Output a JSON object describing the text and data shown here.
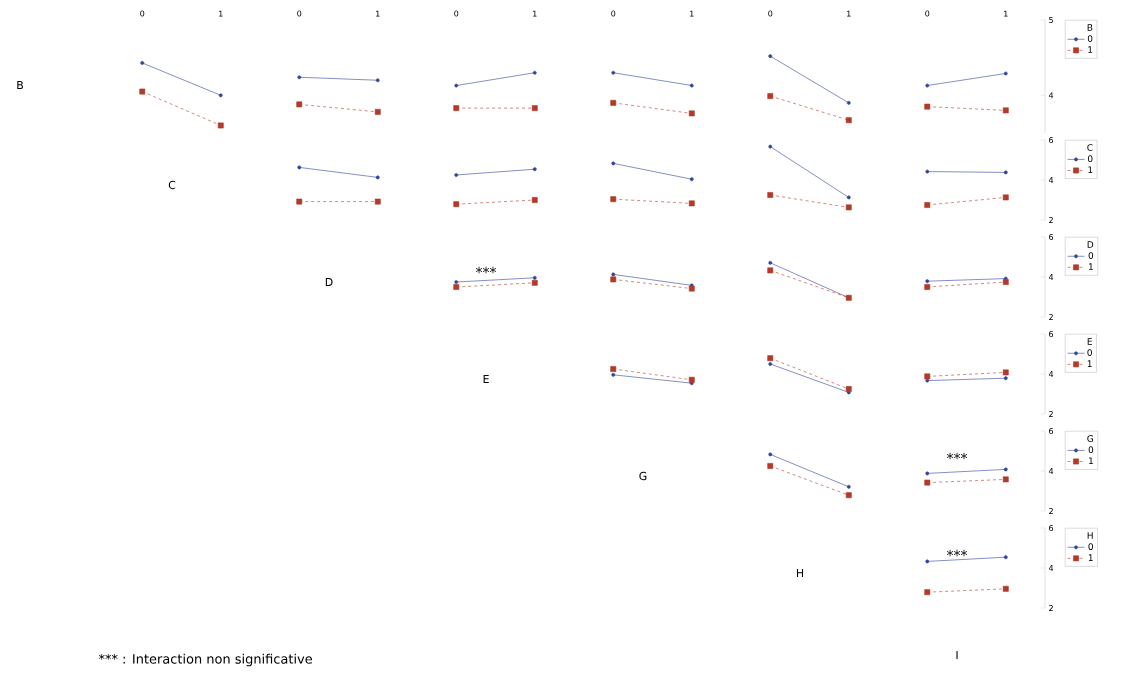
{
  "chart_data": [
    {
      "type": "line",
      "categories": [
        "0",
        "1",
        "0",
        "1",
        "0",
        "1",
        "0",
        "1",
        "0",
        "1",
        "0",
        "1"
      ],
      "ylim": [
        3.5,
        5
      ],
      "yticks": [
        4,
        5
      ],
      "legend": "right",
      "legend_title": "B",
      "series": [
        {
          "color": "#33449a",
          "marker": "circle",
          "line_style": "solid",
          "values": [
            4.43,
            4.0,
            null,
            null,
            null,
            null,
            null,
            null,
            null,
            null,
            null,
            null
          ]
        },
        {
          "color": "#b23a2a",
          "marker": "square",
          "line_style": "dashed",
          "values": [
            4.05,
            3.6,
            null,
            null,
            null,
            null,
            null,
            null,
            null,
            null,
            null,
            null
          ]
        },
        {
          "color": "#33449a",
          "marker": "circle",
          "line_style": "solid",
          "values": [
            null,
            null,
            4.24,
            4.2,
            null,
            null,
            null,
            null,
            null,
            null,
            null,
            null
          ]
        },
        {
          "color": "#b23a2a",
          "marker": "square",
          "line_style": "dashed",
          "values": [
            null,
            null,
            3.88,
            3.78,
            null,
            null,
            null,
            null,
            null,
            null,
            null,
            null
          ]
        },
        {
          "color": "#33449a",
          "marker": "circle",
          "line_style": "solid",
          "values": [
            null,
            null,
            null,
            null,
            4.13,
            4.3,
            null,
            null,
            null,
            null,
            null,
            null
          ]
        },
        {
          "color": "#b23a2a",
          "marker": "square",
          "line_style": "dashed",
          "values": [
            null,
            null,
            null,
            null,
            3.83,
            3.83,
            null,
            null,
            null,
            null,
            null,
            null
          ]
        },
        {
          "color": "#33449a",
          "marker": "circle",
          "line_style": "solid",
          "values": [
            null,
            null,
            null,
            null,
            null,
            null,
            4.3,
            4.13,
            null,
            null,
            null,
            null
          ]
        },
        {
          "color": "#b23a2a",
          "marker": "square",
          "line_style": "dashed",
          "values": [
            null,
            null,
            null,
            null,
            null,
            null,
            3.9,
            3.76,
            null,
            null,
            null,
            null
          ]
        },
        {
          "color": "#33449a",
          "marker": "circle",
          "line_style": "solid",
          "values": [
            null,
            null,
            null,
            null,
            null,
            null,
            null,
            null,
            4.52,
            3.9,
            null,
            null
          ]
        },
        {
          "color": "#b23a2a",
          "marker": "square",
          "line_style": "dashed",
          "values": [
            null,
            null,
            null,
            null,
            null,
            null,
            null,
            null,
            3.99,
            3.67,
            null,
            null
          ]
        },
        {
          "name": "0",
          "color": "#33449a",
          "marker": "circle",
          "line_style": "solid",
          "values": [
            null,
            null,
            null,
            null,
            null,
            null,
            null,
            null,
            null,
            null,
            4.13,
            4.29
          ]
        },
        {
          "name": "1",
          "color": "#b23a2a",
          "marker": "square",
          "line_style": "dashed",
          "values": [
            null,
            null,
            null,
            null,
            null,
            null,
            null,
            null,
            null,
            null,
            3.85,
            3.8
          ]
        }
      ]
    },
    {
      "type": "line",
      "categories": [
        "0",
        "1",
        "0",
        "1",
        "0",
        "1",
        "0",
        "1",
        "0",
        "1",
        "0",
        "1"
      ],
      "ylim": [
        2,
        6
      ],
      "yticks": [
        2,
        4,
        6
      ],
      "tick_labels": "y",
      "legend": "right",
      "legend_title": "C",
      "series": [
        {
          "color": "#33449a",
          "marker": "circle",
          "line_style": "solid",
          "values": [
            null,
            null,
            4.63,
            4.13,
            null,
            null,
            null,
            null,
            null,
            null,
            null,
            null
          ]
        },
        {
          "color": "#b23a2a",
          "marker": "square",
          "line_style": "dashed",
          "values": [
            null,
            null,
            2.92,
            2.92,
            null,
            null,
            null,
            null,
            null,
            null,
            null,
            null
          ]
        },
        {
          "color": "#33449a",
          "marker": "circle",
          "line_style": "solid",
          "values": [
            null,
            null,
            null,
            null,
            4.25,
            4.54,
            null,
            null,
            null,
            null,
            null,
            null
          ]
        },
        {
          "color": "#b23a2a",
          "marker": "square",
          "line_style": "dashed",
          "values": [
            null,
            null,
            null,
            null,
            2.79,
            3.0,
            null,
            null,
            null,
            null,
            null,
            null
          ]
        },
        {
          "color": "#33449a",
          "marker": "circle",
          "line_style": "solid",
          "values": [
            null,
            null,
            null,
            null,
            null,
            null,
            4.83,
            4.04,
            null,
            null,
            null,
            null
          ]
        },
        {
          "color": "#b23a2a",
          "marker": "square",
          "line_style": "dashed",
          "values": [
            null,
            null,
            null,
            null,
            null,
            null,
            3.04,
            2.83,
            null,
            null,
            null,
            null
          ]
        },
        {
          "color": "#33449a",
          "marker": "circle",
          "line_style": "solid",
          "values": [
            null,
            null,
            null,
            null,
            null,
            null,
            null,
            null,
            5.67,
            3.13,
            null,
            null
          ]
        },
        {
          "color": "#b23a2a",
          "marker": "square",
          "line_style": "dashed",
          "values": [
            null,
            null,
            null,
            null,
            null,
            null,
            null,
            null,
            3.25,
            2.63,
            null,
            null
          ]
        },
        {
          "name": "0",
          "color": "#33449a",
          "marker": "circle",
          "line_style": "solid",
          "values": [
            null,
            null,
            null,
            null,
            null,
            null,
            null,
            null,
            null,
            null,
            4.42,
            4.38
          ]
        },
        {
          "name": "1",
          "color": "#b23a2a",
          "marker": "square",
          "line_style": "dashed",
          "values": [
            null,
            null,
            null,
            null,
            null,
            null,
            null,
            null,
            null,
            null,
            2.75,
            3.13
          ]
        }
      ]
    },
    {
      "type": "line",
      "categories": [
        "0",
        "1",
        "0",
        "1",
        "0",
        "1",
        "0",
        "1",
        "0",
        "1",
        "0",
        "1"
      ],
      "ylim": [
        2,
        6
      ],
      "yticks": [
        2,
        4,
        6
      ],
      "tick_labels": "y",
      "legend": "right",
      "legend_title": "D",
      "series": [
        {
          "color": "#33449a",
          "marker": "circle",
          "line_style": "solid",
          "values": [
            null,
            null,
            null,
            null,
            3.75,
            3.96,
            null,
            null,
            null,
            null,
            null,
            null
          ]
        },
        {
          "color": "#b23a2a",
          "marker": "square",
          "line_style": "dashed",
          "values": [
            null,
            null,
            null,
            null,
            3.5,
            3.71,
            null,
            null,
            null,
            null,
            null,
            null
          ]
        },
        {
          "color": "#33449a",
          "marker": "circle",
          "line_style": "solid",
          "values": [
            null,
            null,
            null,
            null,
            null,
            null,
            4.13,
            3.58,
            null,
            null,
            null,
            null
          ]
        },
        {
          "color": "#b23a2a",
          "marker": "square",
          "line_style": "dashed",
          "values": [
            null,
            null,
            null,
            null,
            null,
            null,
            3.88,
            3.42,
            null,
            null,
            null,
            null
          ]
        },
        {
          "color": "#33449a",
          "marker": "circle",
          "line_style": "solid",
          "values": [
            null,
            null,
            null,
            null,
            null,
            null,
            null,
            null,
            4.71,
            2.96,
            null,
            null
          ]
        },
        {
          "color": "#b23a2a",
          "marker": "square",
          "line_style": "dashed",
          "values": [
            null,
            null,
            null,
            null,
            null,
            null,
            null,
            null,
            4.33,
            2.96,
            null,
            null
          ]
        },
        {
          "name": "0",
          "color": "#33449a",
          "marker": "circle",
          "line_style": "solid",
          "values": [
            null,
            null,
            null,
            null,
            null,
            null,
            null,
            null,
            null,
            null,
            3.79,
            3.92
          ]
        },
        {
          "name": "1",
          "color": "#b23a2a",
          "marker": "square",
          "line_style": "dashed",
          "values": [
            null,
            null,
            null,
            null,
            null,
            null,
            null,
            null,
            null,
            null,
            3.5,
            3.75
          ]
        }
      ]
    },
    {
      "type": "line",
      "categories": [
        "0",
        "1",
        "0",
        "1",
        "0",
        "1",
        "0",
        "1",
        "0",
        "1",
        "0",
        "1"
      ],
      "ylim": [
        2,
        6
      ],
      "yticks": [
        2,
        4,
        6
      ],
      "tick_labels": "y",
      "legend": "right",
      "legend_title": "E",
      "series": [
        {
          "color": "#33449a",
          "marker": "circle",
          "line_style": "solid",
          "values": [
            null,
            null,
            null,
            null,
            null,
            null,
            3.96,
            3.54,
            null,
            null,
            null,
            null
          ]
        },
        {
          "color": "#b23a2a",
          "marker": "square",
          "line_style": "dashed",
          "values": [
            null,
            null,
            null,
            null,
            null,
            null,
            4.25,
            3.71,
            null,
            null,
            null,
            null
          ]
        },
        {
          "color": "#33449a",
          "marker": "circle",
          "line_style": "solid",
          "values": [
            null,
            null,
            null,
            null,
            null,
            null,
            null,
            null,
            4.5,
            3.08,
            null,
            null
          ]
        },
        {
          "color": "#b23a2a",
          "marker": "square",
          "line_style": "dashed",
          "values": [
            null,
            null,
            null,
            null,
            null,
            null,
            null,
            null,
            4.79,
            3.25,
            null,
            null
          ]
        },
        {
          "name": "0",
          "color": "#33449a",
          "marker": "circle",
          "line_style": "solid",
          "values": [
            null,
            null,
            null,
            null,
            null,
            null,
            null,
            null,
            null,
            null,
            3.67,
            3.79
          ]
        },
        {
          "name": "1",
          "color": "#b23a2a",
          "marker": "square",
          "line_style": "dashed",
          "values": [
            null,
            null,
            null,
            null,
            null,
            null,
            null,
            null,
            null,
            null,
            3.88,
            4.08
          ]
        }
      ]
    },
    {
      "type": "line",
      "categories": [
        "0",
        "1",
        "0",
        "1",
        "0",
        "1",
        "0",
        "1",
        "0",
        "1",
        "0",
        "1"
      ],
      "ylim": [
        2,
        6
      ],
      "yticks": [
        2,
        4,
        6
      ],
      "tick_labels": "y",
      "legend": "right",
      "legend_title": "G",
      "series": [
        {
          "color": "#33449a",
          "marker": "circle",
          "line_style": "solid",
          "values": [
            null,
            null,
            null,
            null,
            null,
            null,
            null,
            null,
            4.83,
            3.21,
            null,
            null
          ]
        },
        {
          "color": "#b23a2a",
          "marker": "square",
          "line_style": "dashed",
          "values": [
            null,
            null,
            null,
            null,
            null,
            null,
            null,
            null,
            4.25,
            2.79,
            null,
            null
          ]
        },
        {
          "name": "0",
          "color": "#33449a",
          "marker": "circle",
          "line_style": "solid",
          "values": [
            null,
            null,
            null,
            null,
            null,
            null,
            null,
            null,
            null,
            null,
            3.88,
            4.08
          ]
        },
        {
          "name": "1",
          "color": "#b23a2a",
          "marker": "square",
          "line_style": "dashed",
          "values": [
            null,
            null,
            null,
            null,
            null,
            null,
            null,
            null,
            null,
            null,
            3.42,
            3.58
          ]
        }
      ]
    },
    {
      "type": "line",
      "categories": [
        "0",
        "1",
        "0",
        "1",
        "0",
        "1",
        "0",
        "1",
        "0",
        "1",
        "0",
        "1"
      ],
      "ylim": [
        2,
        6
      ],
      "yticks": [
        2,
        4,
        6
      ],
      "tick_labels": "y",
      "legend": "right",
      "legend_title": "H",
      "series": [
        {
          "name": "0",
          "color": "#33449a",
          "marker": "circle",
          "line_style": "solid",
          "values": [
            null,
            null,
            null,
            null,
            null,
            null,
            null,
            null,
            null,
            null,
            4.33,
            4.54
          ]
        },
        {
          "name": "1",
          "color": "#b23a2a",
          "marker": "square",
          "line_style": "dashed",
          "values": [
            null,
            null,
            null,
            null,
            null,
            null,
            null,
            null,
            null,
            null,
            2.79,
            2.96
          ]
        }
      ]
    },
    {
      "type": "other",
      "annotations": [
        "B",
        "C",
        "D",
        "E",
        "G",
        "H",
        "I",
        "***",
        "***",
        "***",
        "*** : Interaction non significative"
      ]
    }
  ]
}
